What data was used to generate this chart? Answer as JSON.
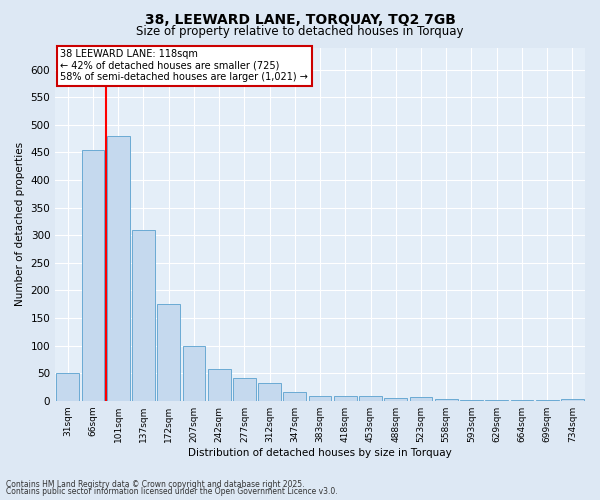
{
  "title": "38, LEEWARD LANE, TORQUAY, TQ2 7GB",
  "subtitle": "Size of property relative to detached houses in Torquay",
  "xlabel": "Distribution of detached houses by size in Torquay",
  "ylabel": "Number of detached properties",
  "categories": [
    "31sqm",
    "66sqm",
    "101sqm",
    "137sqm",
    "172sqm",
    "207sqm",
    "242sqm",
    "277sqm",
    "312sqm",
    "347sqm",
    "383sqm",
    "418sqm",
    "453sqm",
    "488sqm",
    "523sqm",
    "558sqm",
    "593sqm",
    "629sqm",
    "664sqm",
    "699sqm",
    "734sqm"
  ],
  "values": [
    50,
    455,
    480,
    310,
    175,
    100,
    57,
    42,
    32,
    15,
    9,
    9,
    9,
    5,
    6,
    3,
    1,
    1,
    1,
    1,
    4
  ],
  "bar_color": "#c5d9ee",
  "bar_edge_color": "#6aaad4",
  "red_line_index": 2,
  "ylim": [
    0,
    640
  ],
  "yticks": [
    0,
    50,
    100,
    150,
    200,
    250,
    300,
    350,
    400,
    450,
    500,
    550,
    600
  ],
  "annotation_title": "38 LEEWARD LANE: 118sqm",
  "annotation_line2": "← 42% of detached houses are smaller (725)",
  "annotation_line3": "58% of semi-detached houses are larger (1,021) →",
  "annotation_box_color": "#ffffff",
  "annotation_box_edge": "#cc0000",
  "bg_color": "#dde8f4",
  "plot_bg_color": "#e4eef8",
  "grid_color": "#ffffff",
  "footnote1": "Contains HM Land Registry data © Crown copyright and database right 2025.",
  "footnote2": "Contains public sector information licensed under the Open Government Licence v3.0."
}
